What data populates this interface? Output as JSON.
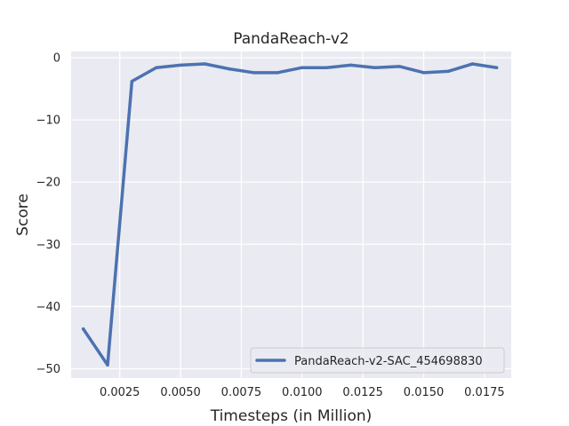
{
  "chart_data": {
    "type": "line",
    "title": "PandaReach-v2",
    "xlabel": "Timesteps (in Million)",
    "ylabel": "Score",
    "xlim": [
      0.0005,
      0.0186
    ],
    "ylim": [
      -51.5,
      1
    ],
    "x_ticks": [
      0.0025,
      0.005,
      0.0075,
      0.01,
      0.0125,
      0.015,
      0.0175
    ],
    "x_tick_labels": [
      "0.0025",
      "0.0050",
      "0.0075",
      "0.0100",
      "0.0125",
      "0.0150",
      "0.0175"
    ],
    "y_ticks": [
      0,
      -10,
      -20,
      -30,
      -40,
      -50
    ],
    "y_tick_labels": [
      "0",
      "−10",
      "−20",
      "−30",
      "−40",
      "−50"
    ],
    "grid": true,
    "legend_position": "lower-right",
    "series": [
      {
        "name": "PandaReach-v2-SAC_454698830",
        "color": "#4c72b0",
        "x": [
          0.001,
          0.002,
          0.003,
          0.004,
          0.005,
          0.006,
          0.007,
          0.008,
          0.009,
          0.01,
          0.011,
          0.012,
          0.013,
          0.014,
          0.015,
          0.016,
          0.017,
          0.018
        ],
        "y": [
          -43.6,
          -49.4,
          -3.8,
          -1.6,
          -1.2,
          -1.0,
          -1.8,
          -2.4,
          -2.4,
          -1.6,
          -1.6,
          -1.2,
          -1.6,
          -1.4,
          -2.4,
          -2.2,
          -1.0,
          -1.6
        ]
      }
    ]
  }
}
